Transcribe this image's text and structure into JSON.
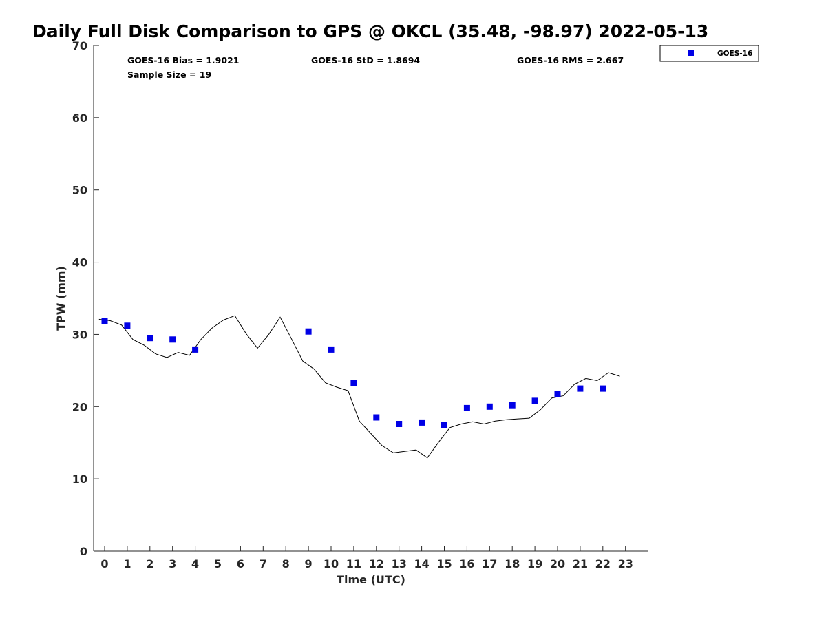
{
  "chart_data": {
    "type": "scatter",
    "title": "Daily Full Disk Comparison to GPS @ OKCL (35.48, -98.97) 2022-05-13",
    "xlabel": "Time (UTC)",
    "ylabel": "TPW (mm)",
    "xlim": [
      -0.5,
      23.8
    ],
    "ylim": [
      0,
      70
    ],
    "x_ticks": [
      "0",
      "1",
      "2",
      "3",
      "4",
      "5",
      "6",
      "7",
      "8",
      "9",
      "10",
      "11",
      "12",
      "13",
      "14",
      "15",
      "16",
      "17",
      "18",
      "19",
      "20",
      "21",
      "22",
      "23"
    ],
    "y_ticks": [
      "0",
      "10",
      "20",
      "30",
      "40",
      "50",
      "60",
      "70"
    ],
    "grid": false,
    "legend_position": "top-right, outside plot",
    "stats": {
      "bias": "GOES-16 Bias = 1.9021",
      "std": "GOES-16 StD = 1.8694",
      "rms": "GOES-16 RMS = 2.667",
      "sample": "Sample Size = 19"
    },
    "series": [
      {
        "name": "GOES-16",
        "marker": "square",
        "color": "#0000e6",
        "x": [
          0,
          1,
          2,
          3,
          4,
          9,
          10,
          11,
          12,
          13,
          14,
          15,
          16,
          17,
          18,
          19,
          20,
          21,
          22
        ],
        "y": [
          31.9,
          31.2,
          29.5,
          29.3,
          27.9,
          30.4,
          27.9,
          23.3,
          18.5,
          17.6,
          17.8,
          17.4,
          19.8,
          20.0,
          20.2,
          20.8,
          21.7,
          22.5,
          22.5
        ]
      },
      {
        "marker": "line",
        "color": "#000000",
        "x": [
          -0.25,
          0.25,
          0.75,
          1.25,
          1.75,
          2.25,
          2.75,
          3.25,
          3.75,
          4.25,
          4.75,
          5.25,
          5.75,
          6.25,
          6.75,
          7.25,
          7.75,
          8.25,
          8.75,
          9.25,
          9.75,
          10.25,
          10.75,
          11.25,
          11.75,
          12.25,
          12.75,
          13.25,
          13.75,
          14.25,
          14.75,
          15.25,
          15.75,
          16.25,
          16.75,
          17.25,
          17.75,
          18.25,
          18.75,
          19.25,
          19.75,
          20.25,
          20.75,
          21.25,
          21.75,
          22.25,
          22.75
        ],
        "y": [
          32.1,
          31.9,
          31.3,
          29.3,
          28.5,
          27.3,
          26.8,
          27.5,
          27.1,
          29.3,
          30.9,
          32.0,
          32.6,
          30.1,
          28.1,
          30.0,
          32.4,
          29.4,
          26.3,
          25.2,
          23.3,
          22.7,
          22.2,
          18.0,
          16.3,
          14.6,
          13.6,
          13.8,
          14.0,
          12.9,
          15.1,
          17.1,
          17.6,
          17.9,
          17.6,
          18.0,
          18.2,
          18.3,
          18.4,
          19.6,
          21.2,
          21.5,
          23.1,
          23.9,
          23.6,
          24.7,
          24.2
        ]
      }
    ]
  }
}
